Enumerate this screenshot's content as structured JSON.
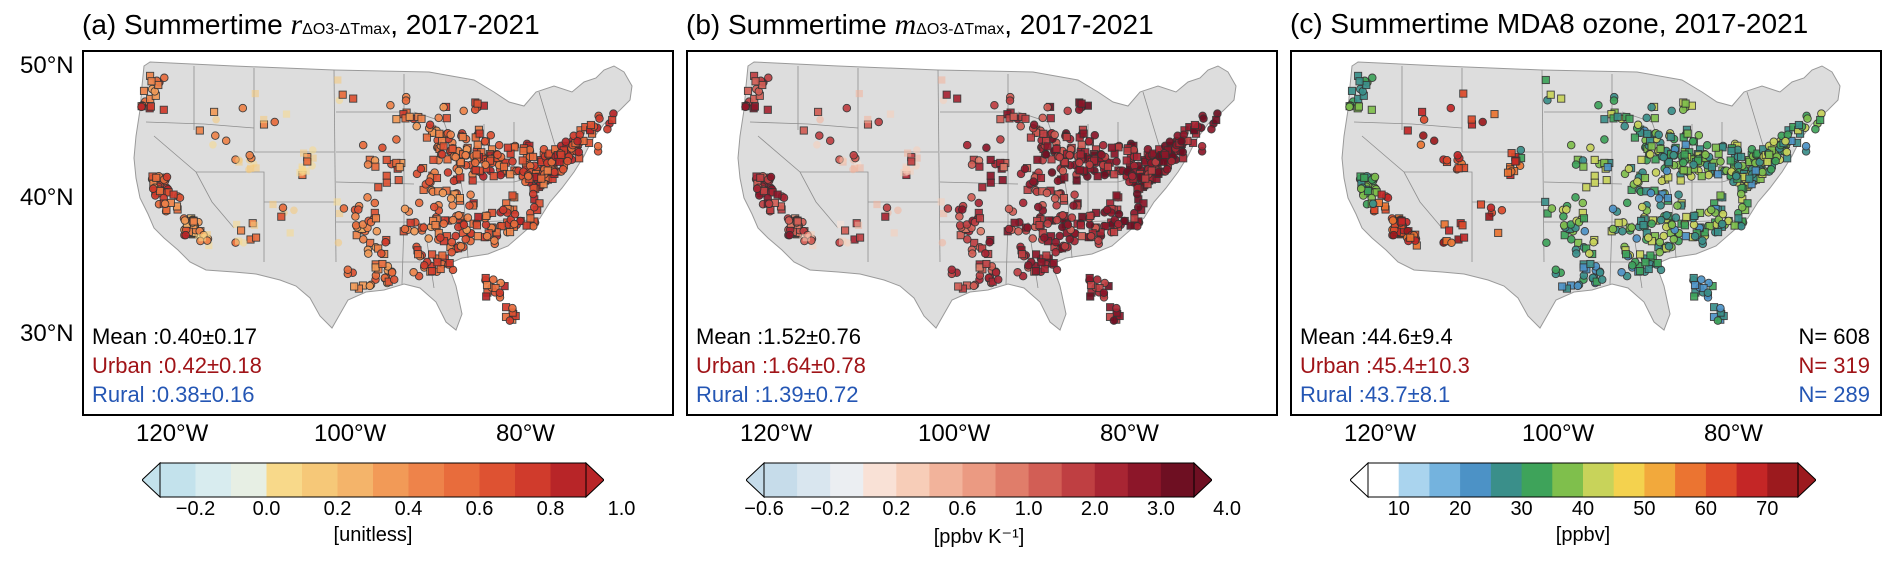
{
  "panels": [
    {
      "title_pre": "(a) Summertime ",
      "title_var": "r",
      "title_sub": "ΔO3-ΔTmax",
      "title_post": ", 2017-2021",
      "stats": {
        "all_label": "Mean",
        "all_value": ":0.40±0.17",
        "urban_label": "Urban",
        "urban_value": ":0.42±0.18",
        "rural_label": "Rural",
        "rural_value": ":0.38±0.16"
      },
      "colorbar": {
        "ticks": [
          "−0.2",
          "0.0",
          "0.2",
          "0.4",
          "0.6",
          "0.8",
          "1.0"
        ],
        "unit": "[unitless]",
        "colors": [
          "#c3e2ec",
          "#d8ecef",
          "#e7efe4",
          "#f8d98a",
          "#f6c878",
          "#f4b46a",
          "#f29a57",
          "#ee834a",
          "#e86c3c",
          "#de5232",
          "#d03b2c",
          "#b82528"
        ]
      }
    },
    {
      "title_pre": "(b) Summertime ",
      "title_var": "m",
      "title_sub": "ΔO3-ΔTmax",
      "title_post": ", 2017-2021",
      "stats": {
        "all_label": "Mean",
        "all_value": ":1.52±0.76",
        "urban_label": "Urban",
        "urban_value": ":1.64±0.78",
        "rural_label": "Rural",
        "rural_value": ":1.39±0.72"
      },
      "colorbar": {
        "ticks": [
          "−0.6",
          "−0.2",
          "0.2",
          "0.6",
          "1.0",
          "2.0",
          "3.0",
          "4.0"
        ],
        "unit": "[ppbv K⁻¹]",
        "colors": [
          "#c6dcea",
          "#d9e6ef",
          "#ebeef2",
          "#f9e1d6",
          "#f7cdb8",
          "#f2b39b",
          "#eb9a82",
          "#e07d6a",
          "#d25e55",
          "#bf3f42",
          "#a82533",
          "#8c1629",
          "#6e0f22"
        ]
      }
    },
    {
      "title_pre": "(c) Summertime MDA8 ozone, 2017-2021",
      "title_var": "",
      "title_sub": "",
      "title_post": "",
      "stats": {
        "all_label": "Mean",
        "all_value": ":44.6±9.4",
        "urban_label": "Urban",
        "urban_value": ":45.4±10.3",
        "rural_label": "Rural",
        "rural_value": ":43.7±8.1"
      },
      "counts": {
        "all": "N= 608",
        "urban": "N= 319",
        "rural": "N= 289"
      },
      "colorbar": {
        "ticks": [
          "10",
          "20",
          "30",
          "40",
          "50",
          "60",
          "70"
        ],
        "unit": "[ppbv]",
        "colors": [
          "#ffffff",
          "#aad4ee",
          "#74b3de",
          "#4c92c6",
          "#3a8f8a",
          "#3ea35a",
          "#7fbf4c",
          "#c8d35a",
          "#f4d24e",
          "#f2a93c",
          "#eb7431",
          "#de4a2a",
          "#c42626",
          "#9c1a1e"
        ]
      }
    }
  ],
  "axes": {
    "lat_labels": [
      "50°N",
      "40°N",
      "30°N"
    ],
    "lon_labels": [
      "120°W",
      "100°W",
      "80°W"
    ]
  }
}
